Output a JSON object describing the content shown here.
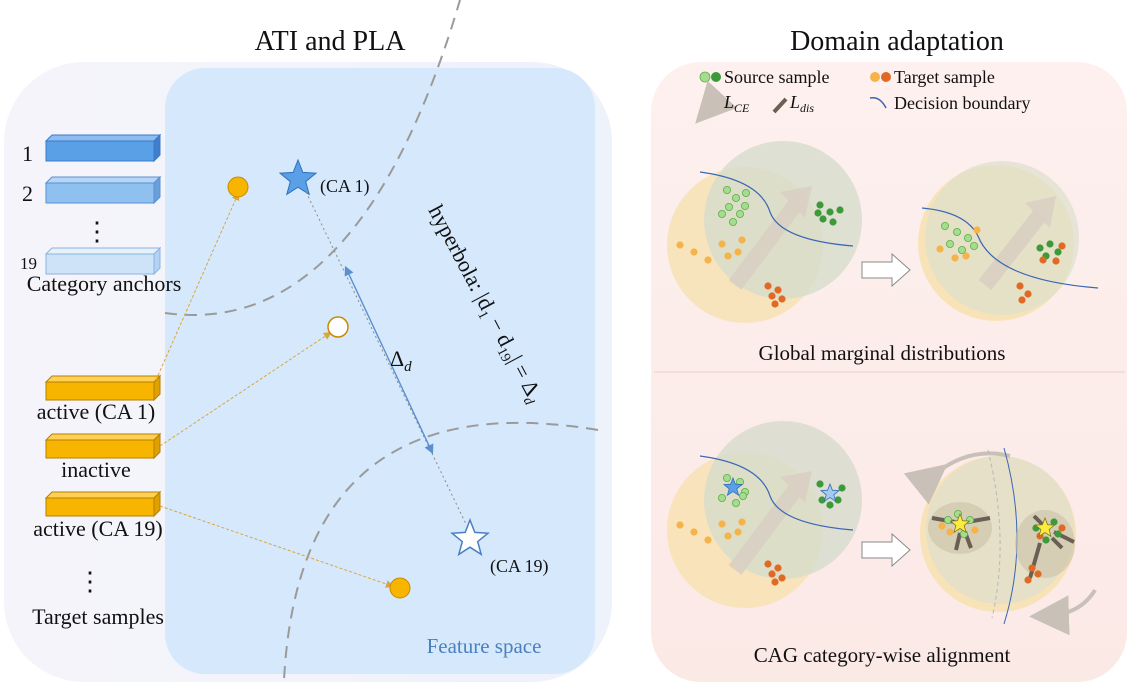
{
  "left_panel": {
    "title": "ATI and PLA",
    "anchor_labels": [
      "1",
      "2",
      "19"
    ],
    "anchors_ellipsis": "⋮",
    "anchors_caption": "Category anchors",
    "sample_labels": [
      "active (CA 1)",
      "inactive",
      "active (CA 19)"
    ],
    "samples_ellipsis": "⋮",
    "samples_caption": "Target samples",
    "ca1_label": "(CA 1)",
    "ca19_label": "(CA 19)",
    "delta_label": "Δ",
    "delta_sub": "d",
    "hyperbola_label": "hyperbola: |d",
    "hyperbola_sub1": "1",
    "hyperbola_mid": " − d",
    "hyperbola_sub2": "19",
    "hyperbola_end": "| = Δ",
    "hyperbola_sub3": "d",
    "feature_space_label": "Feature space",
    "colors": {
      "anchor_dark": "#5aa0e6",
      "anchor_light": "#cfe3f8",
      "sample": "#f7b500",
      "feature_bg": "#d6e8fb"
    }
  },
  "right_panel": {
    "title": "Domain adaptation",
    "legend": {
      "source": "Source sample",
      "target": "Target sample",
      "ce_main": "L",
      "ce_sub": "CE",
      "dis_main": "L",
      "dis_sub": "dis",
      "boundary": "Decision boundary"
    },
    "caption_top": "Global marginal distributions",
    "caption_bottom": "CAG category-wise alignment",
    "colors": {
      "source_light": "#a6dc8f",
      "source_dark": "#3d9a3a",
      "target_light": "#f5b34a",
      "target_dark": "#e06a25",
      "boundary": "#3b66b5"
    }
  }
}
